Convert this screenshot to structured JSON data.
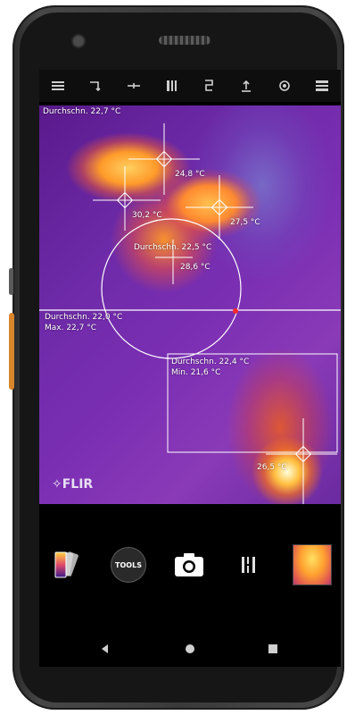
{
  "device": {
    "brand_logo": "FLIR"
  },
  "toolbar": {
    "icons": [
      "menu-icon",
      "rotate-icon",
      "level-icon",
      "gallery-icon",
      "flash-icon",
      "upload-icon",
      "settings-icon",
      "palette-grid-icon"
    ]
  },
  "measurements": {
    "overall_avg": "Durchschn. 22,7 °C",
    "spot_1": "24,8 °C",
    "spot_2": "30,2 °C",
    "spot_3": "27,5 °C",
    "circle_avg": "Durchschn. 22,5 °C",
    "circle_spot": "28,6 °C",
    "line_avg": "Durchschn. 22,0 °C",
    "line_max": "Max. 22,7 °C",
    "rect_avg": "Durchschn. 22,4 °C",
    "rect_min": "Min. 21,6 °C",
    "spot_4": "26,5 °C"
  },
  "bottom": {
    "tools_label": "TOOLS",
    "palette_icon": "palette-icon",
    "camera_icon": "camera-icon",
    "mode_icon": "msx-mode-icon",
    "thumbnail_icon": "last-image-thumbnail"
  },
  "colors": {
    "hot": "#ffd060",
    "cool": "#5a1a8c",
    "accent": "#d9852c"
  }
}
